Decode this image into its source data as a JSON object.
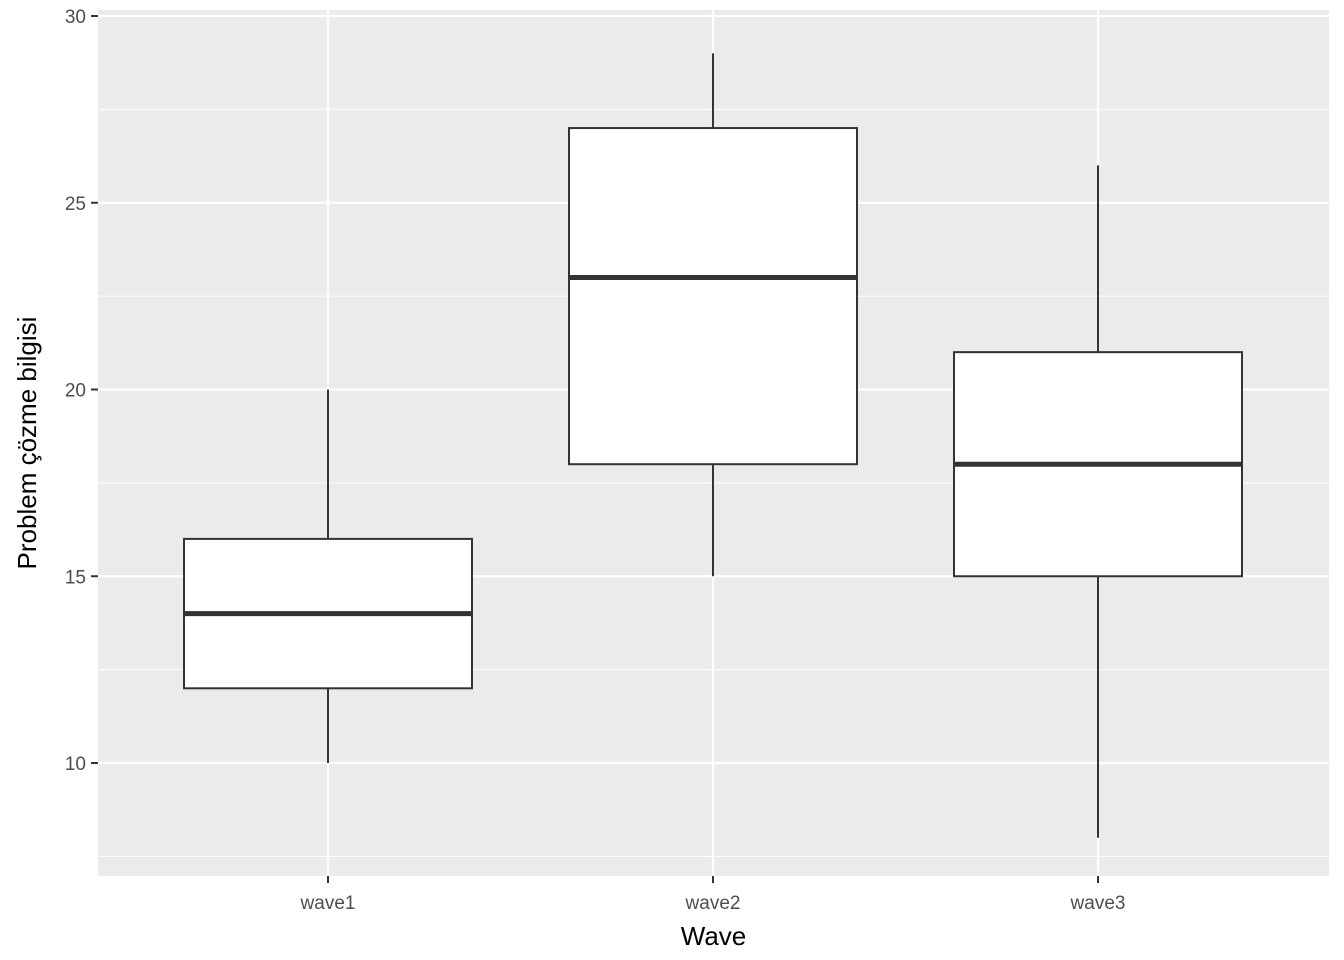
{
  "chart_data": {
    "type": "boxplot",
    "xlabel": "Wave",
    "ylabel": "Problem çözme bilgisi",
    "categories": [
      "wave1",
      "wave2",
      "wave3"
    ],
    "boxes": [
      {
        "category": "wave1",
        "min": 10,
        "q1": 12,
        "median": 14,
        "q3": 16,
        "max": 20
      },
      {
        "category": "wave2",
        "min": 15,
        "q1": 18,
        "median": 23,
        "q3": 27,
        "max": 29
      },
      {
        "category": "wave3",
        "min": 8,
        "q1": 15,
        "median": 18,
        "q3": 21,
        "max": 26
      }
    ],
    "ylim": [
      7,
      30
    ],
    "yticks": [
      10,
      15,
      20,
      25,
      30
    ],
    "grid": true,
    "colors": {
      "panel": "#ebebeb",
      "grid": "#ffffff",
      "box_fill": "#ffffff",
      "box_stroke": "#333333",
      "tick_text": "#4d4d4d"
    }
  }
}
